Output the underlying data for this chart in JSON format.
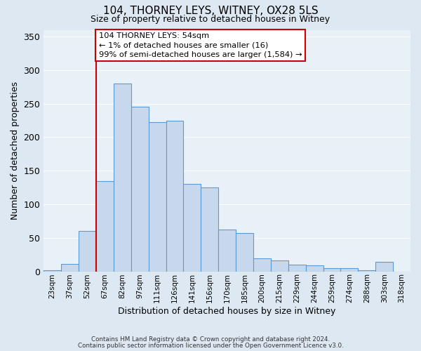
{
  "title": "104, THORNEY LEYS, WITNEY, OX28 5LS",
  "subtitle": "Size of property relative to detached houses in Witney",
  "xlabel": "Distribution of detached houses by size in Witney",
  "ylabel": "Number of detached properties",
  "bin_labels": [
    "23sqm",
    "37sqm",
    "52sqm",
    "67sqm",
    "82sqm",
    "97sqm",
    "111sqm",
    "126sqm",
    "141sqm",
    "156sqm",
    "170sqm",
    "185sqm",
    "200sqm",
    "215sqm",
    "229sqm",
    "244sqm",
    "259sqm",
    "274sqm",
    "288sqm",
    "303sqm",
    "318sqm"
  ],
  "bar_values": [
    2,
    11,
    60,
    135,
    280,
    245,
    222,
    225,
    130,
    125,
    62,
    57,
    19,
    16,
    10,
    9,
    5,
    5,
    2,
    14,
    0
  ],
  "bar_color": "#c8d8ec",
  "bar_edge_color": "#5b9bd5",
  "vline_index": 2,
  "annotation_line1": "104 THORNEY LEYS: 54sqm",
  "annotation_line2": "← 1% of detached houses are smaller (16)",
  "annotation_line3": "99% of semi-detached houses are larger (1,584) →",
  "annotation_box_facecolor": "white",
  "annotation_box_edgecolor": "#cc0000",
  "vline_color": "#cc0000",
  "ylim": [
    0,
    360
  ],
  "yticks": [
    0,
    50,
    100,
    150,
    200,
    250,
    300,
    350
  ],
  "footer1": "Contains HM Land Registry data © Crown copyright and database right 2024.",
  "footer2": "Contains public sector information licensed under the Open Government Licence v3.0.",
  "fig_facecolor": "#dde8f2",
  "ax_facecolor": "#e8f0f8",
  "grid_color": "white",
  "title_fontsize": 11,
  "subtitle_fontsize": 9,
  "axis_label_fontsize": 9,
  "tick_fontsize": 7.5,
  "ytick_fontsize": 9
}
